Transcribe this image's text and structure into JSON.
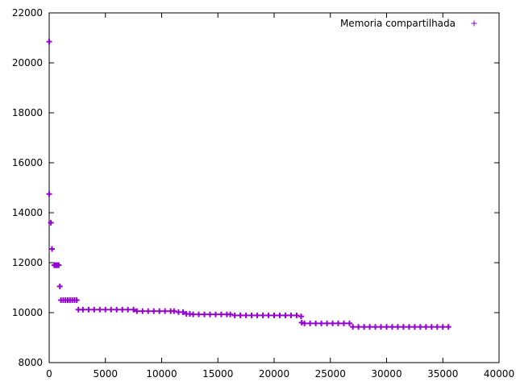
{
  "chart_data": {
    "type": "scatter",
    "title": "",
    "xlabel": "",
    "ylabel": "",
    "xlim": [
      0,
      40000
    ],
    "ylim": [
      8000,
      22000
    ],
    "x_ticks": [
      0,
      5000,
      10000,
      15000,
      20000,
      25000,
      30000,
      35000,
      40000
    ],
    "y_ticks": [
      8000,
      10000,
      12000,
      14000,
      16000,
      18000,
      20000,
      22000
    ],
    "grid": false,
    "legend_position": "top-right",
    "marker": "+",
    "series": [
      {
        "name": "Memoria compartilhada",
        "color": "#9400d3",
        "points": [
          [
            0,
            20850
          ],
          [
            0,
            14750
          ],
          [
            150,
            13600
          ],
          [
            250,
            12550
          ],
          [
            450,
            11900
          ],
          [
            550,
            11900
          ],
          [
            650,
            11900
          ],
          [
            750,
            11900
          ],
          [
            850,
            11900
          ],
          [
            950,
            11050
          ],
          [
            1050,
            10500
          ],
          [
            1250,
            10500
          ],
          [
            1450,
            10500
          ],
          [
            1650,
            10500
          ],
          [
            1850,
            10500
          ],
          [
            2050,
            10500
          ],
          [
            2250,
            10500
          ],
          [
            2450,
            10500
          ],
          [
            2600,
            10120
          ],
          [
            3000,
            10120
          ],
          [
            3500,
            10120
          ],
          [
            4000,
            10120
          ],
          [
            4500,
            10120
          ],
          [
            5000,
            10120
          ],
          [
            5500,
            10120
          ],
          [
            6000,
            10120
          ],
          [
            6500,
            10120
          ],
          [
            7000,
            10120
          ],
          [
            7500,
            10120
          ],
          [
            7800,
            10060
          ],
          [
            8300,
            10060
          ],
          [
            8800,
            10060
          ],
          [
            9300,
            10060
          ],
          [
            9800,
            10060
          ],
          [
            10300,
            10060
          ],
          [
            10800,
            10060
          ],
          [
            11100,
            10060
          ],
          [
            11500,
            10020
          ],
          [
            11900,
            10020
          ],
          [
            12200,
            9950
          ],
          [
            12500,
            9950
          ],
          [
            12800,
            9930
          ],
          [
            13300,
            9930
          ],
          [
            13800,
            9930
          ],
          [
            14300,
            9930
          ],
          [
            14800,
            9930
          ],
          [
            15300,
            9930
          ],
          [
            15800,
            9930
          ],
          [
            16100,
            9930
          ],
          [
            16500,
            9890
          ],
          [
            17000,
            9890
          ],
          [
            17500,
            9890
          ],
          [
            18000,
            9890
          ],
          [
            18500,
            9890
          ],
          [
            19000,
            9890
          ],
          [
            19500,
            9890
          ],
          [
            20000,
            9890
          ],
          [
            20500,
            9890
          ],
          [
            21000,
            9890
          ],
          [
            21500,
            9890
          ],
          [
            22000,
            9890
          ],
          [
            22400,
            9850
          ],
          [
            22450,
            9600
          ],
          [
            22700,
            9570
          ],
          [
            23200,
            9570
          ],
          [
            23700,
            9570
          ],
          [
            24200,
            9570
          ],
          [
            24700,
            9570
          ],
          [
            25200,
            9570
          ],
          [
            25700,
            9570
          ],
          [
            26200,
            9570
          ],
          [
            26700,
            9570
          ],
          [
            27000,
            9430
          ],
          [
            27500,
            9430
          ],
          [
            28000,
            9430
          ],
          [
            28500,
            9430
          ],
          [
            29000,
            9430
          ],
          [
            29500,
            9430
          ],
          [
            30000,
            9430
          ],
          [
            30500,
            9430
          ],
          [
            31000,
            9430
          ],
          [
            31500,
            9430
          ],
          [
            32000,
            9430
          ],
          [
            32500,
            9430
          ],
          [
            33000,
            9430
          ],
          [
            33500,
            9430
          ],
          [
            34000,
            9430
          ],
          [
            34500,
            9430
          ],
          [
            35000,
            9430
          ],
          [
            35500,
            9430
          ]
        ]
      }
    ]
  }
}
